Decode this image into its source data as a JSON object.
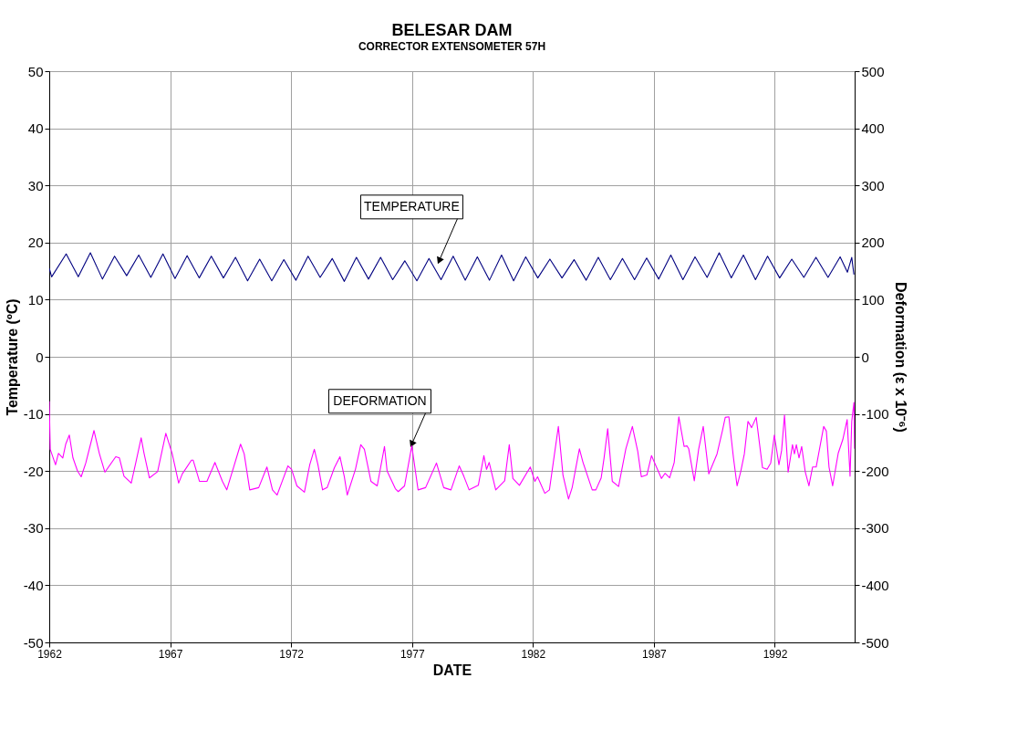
{
  "chart_data": {
    "type": "line",
    "title": "BELESAR DAM",
    "subtitle": "CORRECTOR EXTENSOMETER 57H",
    "xlabel": "DATE",
    "ylabel": "Temperature (ºC)",
    "y2label": "Deformation (ε x 10⁻⁶)",
    "xlim": [
      1962,
      1995.3
    ],
    "xticks": [
      1962,
      1967,
      1972,
      1977,
      1982,
      1987,
      1992
    ],
    "ylim": [
      -50,
      50
    ],
    "yticks": [
      -50,
      -40,
      -30,
      -20,
      -10,
      0,
      10,
      20,
      30,
      40,
      50
    ],
    "y2lim": [
      -500,
      500
    ],
    "y2ticks": [
      -500,
      -400,
      -300,
      -200,
      -100,
      0,
      100,
      200,
      300,
      400,
      500
    ],
    "grid": true,
    "marker": "none",
    "line_style": "solid",
    "annotations": [
      {
        "text": "TEMPERATURE",
        "x": 1978.12,
        "y": 16.8
      },
      {
        "text": "DEFORMATION",
        "x": 1976.99,
        "y": -15.3
      }
    ],
    "series": [
      {
        "color": "#000080",
        "x": [
          1962.0,
          1962.1,
          1962.7,
          1963.2,
          1963.7,
          1964.2,
          1964.7,
          1965.2,
          1965.7,
          1966.2,
          1966.7,
          1967.2,
          1967.7,
          1968.2,
          1968.7,
          1969.2,
          1969.7,
          1970.2,
          1970.7,
          1971.2,
          1971.7,
          1972.2,
          1972.7,
          1973.2,
          1973.7,
          1974.2,
          1974.7,
          1975.2,
          1975.7,
          1976.2,
          1976.7,
          1977.2,
          1977.7,
          1978.2,
          1978.7,
          1979.2,
          1979.7,
          1980.2,
          1980.7,
          1981.2,
          1981.7,
          1982.2,
          1982.7,
          1983.2,
          1983.7,
          1984.2,
          1984.7,
          1985.2,
          1985.7,
          1986.2,
          1986.7,
          1987.2,
          1987.7,
          1988.2,
          1988.7,
          1989.2,
          1989.7,
          1990.2,
          1990.7,
          1991.2,
          1991.7,
          1992.2,
          1992.7,
          1993.2,
          1993.7,
          1994.2,
          1994.7,
          1995.0,
          1995.18,
          1995.27
        ],
        "values": [
          15.5,
          14.0,
          18.0,
          14.0,
          18.2,
          13.6,
          17.6,
          14.2,
          17.8,
          13.9,
          18.0,
          13.7,
          17.7,
          13.8,
          17.6,
          13.8,
          17.4,
          13.3,
          17.1,
          13.3,
          17.0,
          13.4,
          17.6,
          13.9,
          17.2,
          13.2,
          17.4,
          13.6,
          17.4,
          13.5,
          16.8,
          13.3,
          17.2,
          13.5,
          17.6,
          13.4,
          17.5,
          13.4,
          17.8,
          13.3,
          17.5,
          13.8,
          17.1,
          13.8,
          17.0,
          13.4,
          17.4,
          13.5,
          17.2,
          13.5,
          17.3,
          13.6,
          17.8,
          13.5,
          17.5,
          13.9,
          18.2,
          13.8,
          17.8,
          13.5,
          17.6,
          13.8,
          17.1,
          13.9,
          17.4,
          13.9,
          17.5,
          14.8,
          17.4,
          14.4
        ]
      },
      {
        "color": "#ff00ff",
        "axis": "y2",
        "x": [
          1962.0,
          1962.04,
          1962.26,
          1962.38,
          1962.56,
          1962.68,
          1962.83,
          1962.98,
          1963.17,
          1963.32,
          1963.51,
          1963.85,
          1964.07,
          1964.3,
          1964.75,
          1964.9,
          1965.09,
          1965.39,
          1965.58,
          1965.8,
          1965.92,
          1966.14,
          1966.48,
          1966.82,
          1967.08,
          1967.35,
          1967.5,
          1967.88,
          1967.95,
          1968.21,
          1968.52,
          1968.85,
          1969.16,
          1969.34,
          1969.91,
          1970.06,
          1970.29,
          1970.66,
          1971.0,
          1971.23,
          1971.42,
          1971.64,
          1971.87,
          1972.02,
          1972.24,
          1972.55,
          1972.77,
          1972.96,
          1973.11,
          1973.3,
          1973.49,
          1973.79,
          1974.02,
          1974.2,
          1974.32,
          1974.66,
          1974.88,
          1975.03,
          1975.3,
          1975.56,
          1975.86,
          1975.97,
          1976.31,
          1976.43,
          1976.69,
          1976.99,
          1977.25,
          1977.56,
          1978.01,
          1978.31,
          1978.61,
          1978.95,
          1979.14,
          1979.36,
          1979.74,
          1979.97,
          1980.08,
          1980.19,
          1980.46,
          1980.83,
          1981.02,
          1981.17,
          1981.44,
          1981.89,
          1982.08,
          1982.19,
          1982.49,
          1982.68,
          1983.05,
          1983.24,
          1983.47,
          1983.62,
          1983.92,
          1984.07,
          1984.45,
          1984.6,
          1984.82,
          1984.94,
          1985.09,
          1985.28,
          1985.54,
          1985.84,
          1986.11,
          1986.33,
          1986.48,
          1986.71,
          1986.9,
          1987.31,
          1987.46,
          1987.65,
          1987.84,
          1988.03,
          1988.25,
          1988.37,
          1988.44,
          1988.67,
          1988.85,
          1989.04,
          1989.27,
          1989.61,
          1989.83,
          1989.95,
          1990.1,
          1990.29,
          1990.44,
          1990.59,
          1990.74,
          1990.89,
          1991.04,
          1991.23,
          1991.49,
          1991.68,
          1991.83,
          1991.98,
          1992.17,
          1992.28,
          1992.4,
          1992.55,
          1992.73,
          1992.81,
          1992.89,
          1993.0,
          1993.11,
          1993.26,
          1993.41,
          1993.56,
          1993.71,
          1994.02,
          1994.13,
          1994.24,
          1994.39,
          1994.62,
          1994.81,
          1994.99,
          1995.11,
          1995.18,
          1995.27,
          1995.3
        ],
        "values": [
          -78,
          -162,
          -189,
          -169,
          -177,
          -153,
          -137,
          -177,
          -200,
          -210,
          -186,
          -129,
          -169,
          -202,
          -175,
          -177,
          -209,
          -221,
          -185,
          -142,
          -169,
          -212,
          -201,
          -134,
          -169,
          -221,
          -205,
          -181,
          -181,
          -218,
          -218,
          -185,
          -218,
          -233,
          -153,
          -170,
          -233,
          -229,
          -193,
          -233,
          -242,
          -217,
          -191,
          -197,
          -226,
          -237,
          -189,
          -162,
          -189,
          -233,
          -229,
          -194,
          -175,
          -210,
          -242,
          -197,
          -154,
          -162,
          -218,
          -226,
          -157,
          -200,
          -231,
          -236,
          -226,
          -156,
          -233,
          -229,
          -186,
          -229,
          -233,
          -191,
          -209,
          -233,
          -225,
          -173,
          -197,
          -185,
          -233,
          -217,
          -154,
          -213,
          -225,
          -193,
          -218,
          -210,
          -239,
          -233,
          -122,
          -207,
          -249,
          -229,
          -161,
          -185,
          -233,
          -233,
          -212,
          -177,
          -126,
          -218,
          -227,
          -161,
          -122,
          -165,
          -210,
          -207,
          -173,
          -213,
          -204,
          -212,
          -185,
          -105,
          -157,
          -156,
          -161,
          -217,
          -162,
          -122,
          -205,
          -170,
          -130,
          -106,
          -105,
          -177,
          -226,
          -201,
          -170,
          -113,
          -124,
          -106,
          -194,
          -197,
          -186,
          -137,
          -189,
          -164,
          -102,
          -202,
          -154,
          -170,
          -154,
          -177,
          -157,
          -202,
          -226,
          -193,
          -193,
          -122,
          -130,
          -193,
          -226,
          -169,
          -145,
          -110,
          -209,
          -113,
          -80,
          -161
        ]
      }
    ]
  }
}
